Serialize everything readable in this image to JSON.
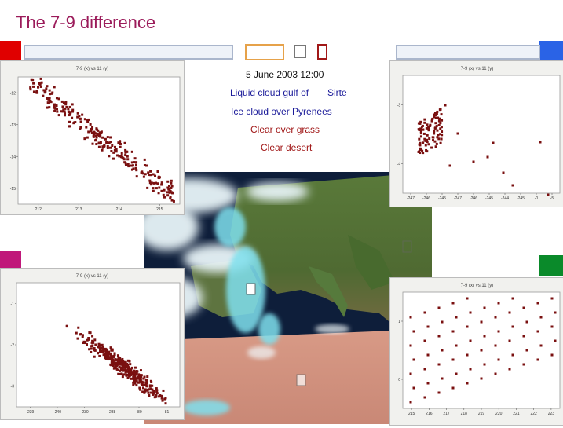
{
  "slide": {
    "title": "The 7-9 difference",
    "date": "5 June 2003 12:00",
    "annot_sirte_a": "Liquid cloud gulf of",
    "annot_sirte_b": "Sirte",
    "annot_pyrenees": "Ice cloud over Pyrenees",
    "annot_grass": "Clear over grass",
    "annot_desert": "Clear desert"
  },
  "colors": {
    "title": "#9b1b5a",
    "red_square": "#e00000",
    "blue_square": "#2a63e6",
    "magenta_square": "#c0187a",
    "green_square": "#0a8a2a",
    "orange_frame": "#e6a24a",
    "point": "#7a1010"
  },
  "plots": {
    "top_left": {
      "header": "7-9 (x) vs 11 (y)",
      "y_ticks": [
        "-12",
        "-13",
        "-14",
        "-15"
      ],
      "x_ticks": [
        "212",
        "213",
        "214",
        "215"
      ]
    },
    "top_right": {
      "header": "7-9 (x) vs 11 (y)",
      "y_ticks": [
        "-3",
        "-4"
      ],
      "x_ticks": [
        "-247",
        "-246",
        "-245",
        "-247",
        "-246",
        "-245",
        "-244",
        "-245",
        "-0",
        "-5"
      ]
    },
    "bottom_left": {
      "header": "7-9 (x) vs 11 (y)",
      "y_ticks": [
        "-1",
        "-2",
        "-3"
      ],
      "x_ticks": [
        "-239",
        "-240",
        "-230",
        "-288",
        "-80",
        "-81"
      ]
    },
    "bottom_right": {
      "header": "7-9 (x) vs 11 (y)",
      "y_ticks": [
        "1",
        "0"
      ],
      "x_ticks": [
        "215",
        "216",
        "217",
        "218",
        "219",
        "220",
        "221",
        "222",
        "223"
      ]
    }
  }
}
